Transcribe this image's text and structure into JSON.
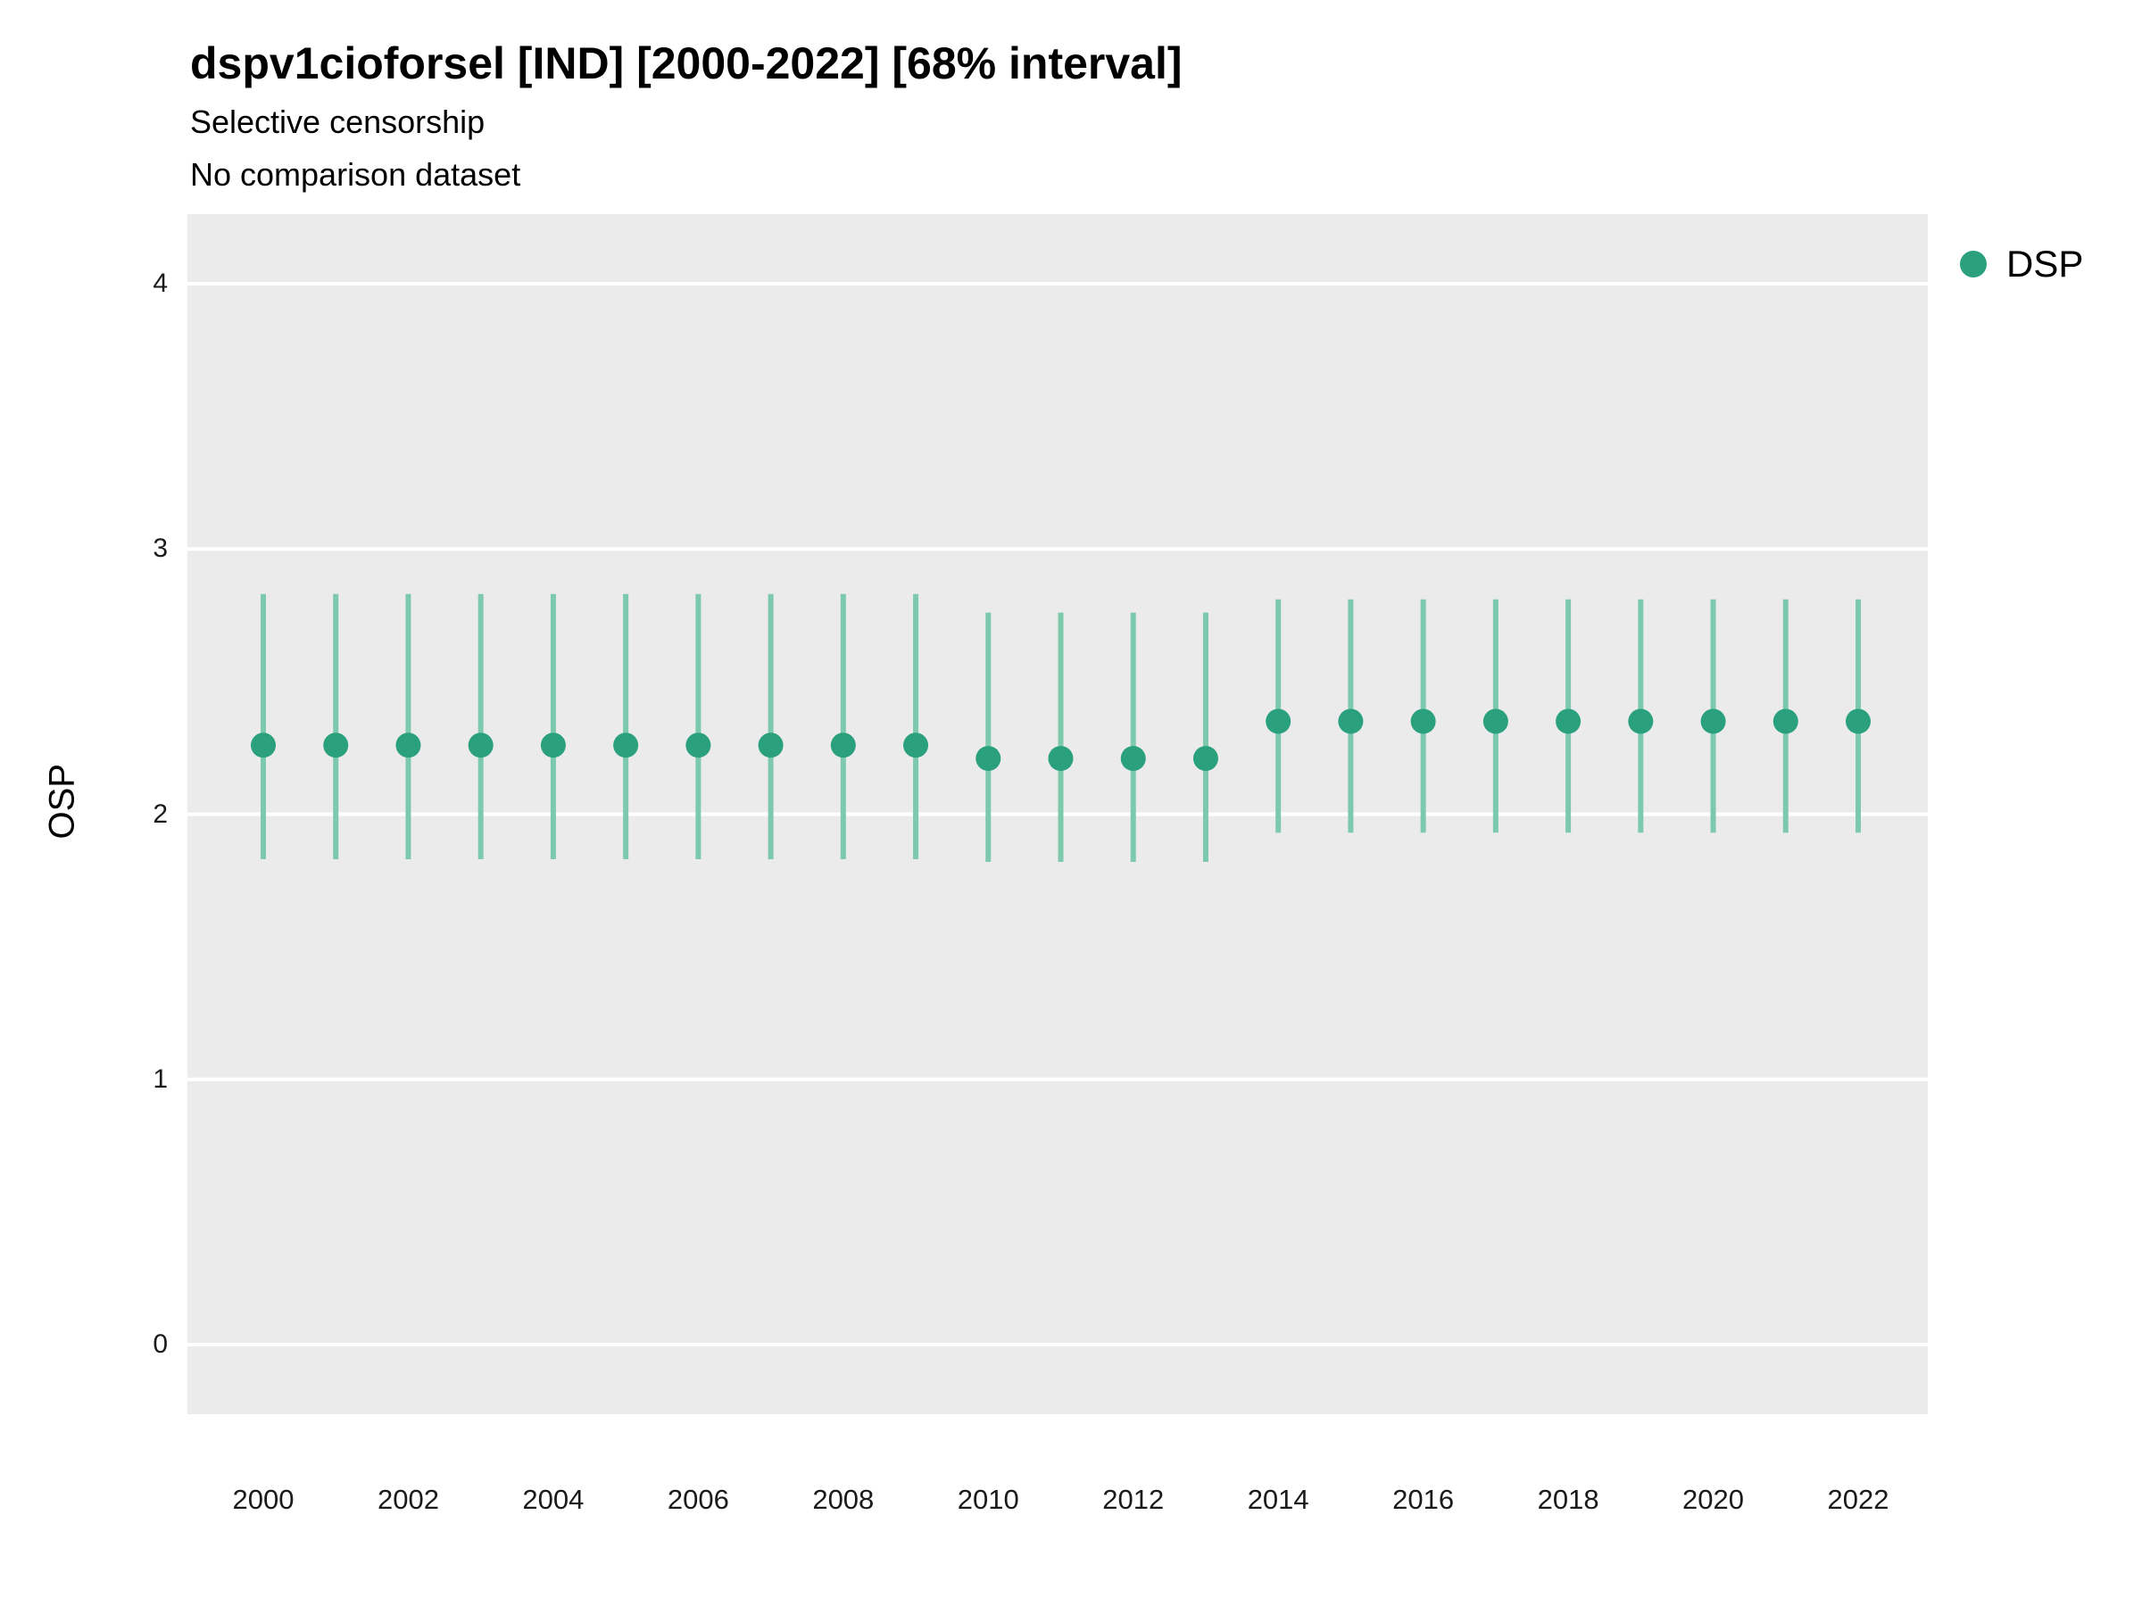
{
  "chart": {
    "title": "dspv1cioforsel [IND] [2000-2022] [68% interval]",
    "subtitle1": "Selective censorship",
    "subtitle2": "No comparison dataset",
    "ylabel": "OSP",
    "legend": {
      "label": "DSP"
    }
  },
  "colors": {
    "point": "#2aa17c",
    "interval": "#7cc9ae",
    "panel_bg": "#ebebeb",
    "gridline": "#ffffff",
    "text": "#000000"
  },
  "chart_data": {
    "type": "scatter",
    "title": "dspv1cioforsel [IND] [2000-2022] [68% interval]",
    "subtitles": [
      "Selective censorship",
      "No comparison dataset"
    ],
    "xlabel": "",
    "ylabel": "OSP",
    "ylim": [
      -0.26,
      4.26
    ],
    "yticks": [
      0,
      1,
      2,
      3,
      4
    ],
    "x": [
      2000,
      2001,
      2002,
      2003,
      2004,
      2005,
      2006,
      2007,
      2008,
      2009,
      2010,
      2011,
      2012,
      2013,
      2014,
      2015,
      2016,
      2017,
      2018,
      2019,
      2020,
      2021,
      2022
    ],
    "xticks": [
      2000,
      2002,
      2004,
      2006,
      2008,
      2010,
      2012,
      2014,
      2016,
      2018,
      2020,
      2022
    ],
    "grid": "major-horizontal",
    "legend_position": "right",
    "interval_level": "68%",
    "series": [
      {
        "name": "DSP",
        "estimates": [
          2.26,
          2.26,
          2.26,
          2.26,
          2.26,
          2.26,
          2.26,
          2.26,
          2.26,
          2.26,
          2.21,
          2.21,
          2.21,
          2.21,
          2.35,
          2.35,
          2.35,
          2.35,
          2.35,
          2.35,
          2.35,
          2.35,
          2.35
        ],
        "interval_low": [
          1.83,
          1.83,
          1.83,
          1.83,
          1.83,
          1.83,
          1.83,
          1.83,
          1.83,
          1.83,
          1.82,
          1.82,
          1.82,
          1.82,
          1.93,
          1.93,
          1.93,
          1.93,
          1.93,
          1.93,
          1.93,
          1.93,
          1.93
        ],
        "interval_high": [
          2.83,
          2.83,
          2.83,
          2.83,
          2.83,
          2.83,
          2.83,
          2.83,
          2.83,
          2.83,
          2.76,
          2.76,
          2.76,
          2.76,
          2.81,
          2.81,
          2.81,
          2.81,
          2.81,
          2.81,
          2.81,
          2.81,
          2.81
        ]
      }
    ]
  }
}
